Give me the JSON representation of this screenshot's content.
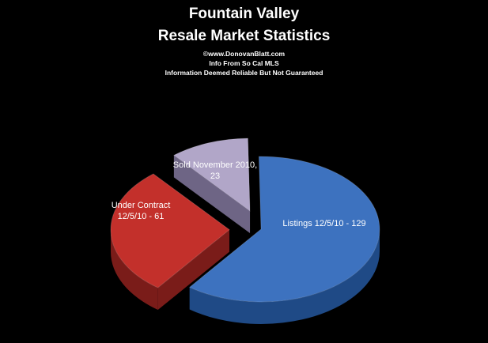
{
  "chart_data": {
    "type": "pie",
    "title_lines": [
      "Fountain Valley",
      "Resale Market Statistics"
    ],
    "subtitle_lines": [
      "©www.DonovanBlatt.com",
      "Info  From So Cal MLS",
      "Information Deemed Reliable But Not Guaranteed"
    ],
    "slices": [
      {
        "category": "Listings",
        "value": 129,
        "label_lines": [
          "Listings 12/5/10  - 129"
        ],
        "color": "#3d72bf",
        "side_color": "#1f4a86",
        "exploded": false
      },
      {
        "category": "Under Contract",
        "value": 61,
        "label_lines": [
          "Under Contract",
          "12/5/10  -  61"
        ],
        "color": "#c3302b",
        "side_color": "#7a1c19",
        "exploded": true
      },
      {
        "category": "Sold November 2010",
        "value": 23,
        "label_lines": [
          "Sold November  2010,",
          "23"
        ],
        "color": "#b1a6c8",
        "side_color": "#6e6585",
        "exploded": true
      }
    ],
    "legend": "none",
    "style": "3d-exploded"
  }
}
